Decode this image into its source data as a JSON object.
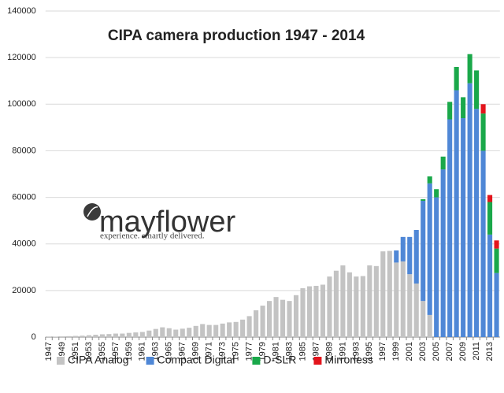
{
  "chart_data": {
    "type": "bar",
    "stacked": true,
    "title": "CIPA  camera production 1947 - 2014",
    "annotations": [
      "mayflower",
      "experience. smartly delivered."
    ],
    "categories": [
      "1947",
      null,
      "1949",
      null,
      "1951",
      null,
      "1953",
      null,
      "1955",
      null,
      "1957",
      null,
      "1959",
      null,
      "1961",
      null,
      "1963",
      null,
      "1965",
      null,
      "1967",
      null,
      "1969",
      null,
      "1971",
      null,
      "1973",
      null,
      "1975",
      null,
      "1977",
      null,
      "1979",
      null,
      "1981",
      null,
      "1983",
      null,
      "1985",
      null,
      "1987",
      null,
      "1989",
      null,
      "1991",
      null,
      "1993",
      null,
      "1995",
      null,
      "1997",
      null,
      "1999",
      null,
      "2001",
      null,
      "2003",
      null,
      "2005",
      null,
      "2007",
      null,
      "2009",
      null,
      "2011",
      null,
      "2013",
      null
    ],
    "series": [
      {
        "name": "CIPA Analog",
        "color": "#c3c3c3",
        "values": [
          100,
          200,
          300,
          400,
          500,
          600,
          800,
          1000,
          1200,
          1300,
          1500,
          1500,
          1800,
          2000,
          2200,
          2800,
          3500,
          4200,
          3800,
          3200,
          3600,
          4000,
          4800,
          5600,
          5200,
          5200,
          5800,
          6300,
          6500,
          7500,
          9000,
          11500,
          13500,
          15500,
          17200,
          16000,
          15500,
          18000,
          21000,
          21800,
          22000,
          22500,
          26000,
          28500,
          30800,
          27800,
          26000,
          26200,
          30800,
          30500,
          36800,
          37000,
          32000,
          32500,
          27000,
          23000,
          15500,
          9500,
          null,
          null,
          null,
          null,
          null,
          null,
          null,
          null,
          null,
          null
        ]
      },
      {
        "name": "Compact Digital",
        "color": "#4f87d6",
        "values": [
          null,
          null,
          null,
          null,
          null,
          null,
          null,
          null,
          null,
          null,
          null,
          null,
          null,
          null,
          null,
          null,
          null,
          null,
          null,
          null,
          null,
          null,
          null,
          null,
          null,
          null,
          null,
          null,
          null,
          null,
          null,
          null,
          null,
          null,
          null,
          null,
          null,
          null,
          null,
          null,
          null,
          null,
          null,
          null,
          null,
          null,
          null,
          null,
          null,
          null,
          null,
          null,
          5200,
          10500,
          16000,
          23000,
          43000,
          56500,
          60000,
          72000,
          93500,
          106000,
          94000,
          109000,
          98000,
          80000,
          44000,
          27500
        ]
      },
      {
        "name": "D-SLR",
        "color": "#1aa84a",
        "values": [
          null,
          null,
          null,
          null,
          null,
          null,
          null,
          null,
          null,
          null,
          null,
          null,
          null,
          null,
          null,
          null,
          null,
          null,
          null,
          null,
          null,
          null,
          null,
          null,
          null,
          null,
          null,
          null,
          null,
          null,
          null,
          null,
          null,
          null,
          null,
          null,
          null,
          null,
          null,
          null,
          null,
          null,
          null,
          null,
          null,
          null,
          null,
          null,
          null,
          null,
          null,
          null,
          null,
          null,
          null,
          null,
          700,
          3000,
          3500,
          5500,
          7500,
          10000,
          9000,
          12500,
          16500,
          16000,
          14000,
          10500
        ]
      },
      {
        "name": "Mirrorless",
        "color": "#e3141c",
        "values": [
          null,
          null,
          null,
          null,
          null,
          null,
          null,
          null,
          null,
          null,
          null,
          null,
          null,
          null,
          null,
          null,
          null,
          null,
          null,
          null,
          null,
          null,
          null,
          null,
          null,
          null,
          null,
          null,
          null,
          null,
          null,
          null,
          null,
          null,
          null,
          null,
          null,
          null,
          null,
          null,
          null,
          null,
          null,
          null,
          null,
          null,
          null,
          null,
          null,
          null,
          null,
          null,
          null,
          null,
          null,
          null,
          null,
          null,
          null,
          null,
          null,
          null,
          null,
          null,
          null,
          4000,
          3000,
          3500
        ]
      }
    ],
    "ylim": [
      0,
      140000
    ],
    "yticks": [
      0,
      20000,
      40000,
      60000,
      80000,
      100000,
      120000,
      140000
    ],
    "grid": true,
    "legend": "bottom"
  }
}
